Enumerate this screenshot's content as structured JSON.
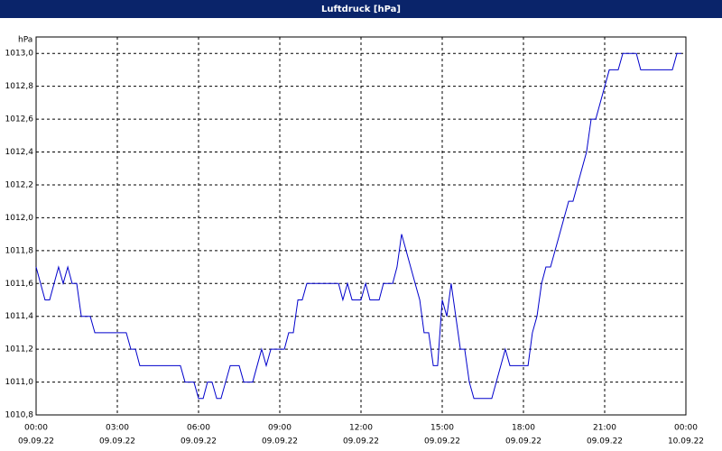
{
  "chart_data": {
    "type": "line",
    "title": "Luftdruck [hPa]",
    "y_label": "hPa",
    "x": [
      0,
      0.33,
      0.5,
      0.83,
      1,
      1.17,
      1.33,
      1.5,
      1.67,
      2,
      2.17,
      3.33,
      3.5,
      3.67,
      3.83,
      5.33,
      5.5,
      5.83,
      6,
      6.17,
      6.33,
      6.5,
      6.67,
      6.83,
      7.17,
      7.5,
      7.67,
      8,
      8.33,
      8.5,
      8.67,
      9.17,
      9.33,
      9.5,
      9.67,
      9.83,
      10,
      11.17,
      11.33,
      11.5,
      11.67,
      12,
      12.17,
      12.33,
      12.67,
      12.83,
      13.17,
      13.33,
      13.5,
      14,
      14.17,
      14.33,
      14.5,
      14.67,
      14.83,
      15,
      15.17,
      15.33,
      15.67,
      15.83,
      16,
      16.17,
      16.83,
      17.33,
      17.5,
      18.17,
      18.33,
      18.5,
      18.67,
      18.83,
      19,
      19.67,
      19.83,
      20.33,
      20.5,
      20.67,
      21.17,
      21.5,
      21.67,
      22.17,
      22.33,
      23.5,
      23.67,
      23.83
    ],
    "series": [
      {
        "name": "Luftdruck",
        "color": "#0000cc",
        "values": [
          1011.7,
          1011.5,
          1011.5,
          1011.7,
          1011.6,
          1011.7,
          1011.6,
          1011.6,
          1011.4,
          1011.4,
          1011.3,
          1011.3,
          1011.2,
          1011.2,
          1011.1,
          1011.1,
          1011.0,
          1011.0,
          1010.9,
          1010.9,
          1011.0,
          1011.0,
          1010.9,
          1010.9,
          1011.1,
          1011.1,
          1011.0,
          1011.0,
          1011.2,
          1011.1,
          1011.2,
          1011.2,
          1011.3,
          1011.3,
          1011.5,
          1011.5,
          1011.6,
          1011.6,
          1011.5,
          1011.6,
          1011.5,
          1011.5,
          1011.6,
          1011.5,
          1011.5,
          1011.6,
          1011.6,
          1011.7,
          1011.9,
          1011.6,
          1011.5,
          1011.3,
          1011.3,
          1011.1,
          1011.1,
          1011.5,
          1011.4,
          1011.6,
          1011.2,
          1011.2,
          1011.0,
          1010.9,
          1010.9,
          1011.2,
          1011.1,
          1011.1,
          1011.3,
          1011.4,
          1011.6,
          1011.7,
          1011.7,
          1012.1,
          1012.1,
          1012.4,
          1012.6,
          1012.6,
          1012.9,
          1012.9,
          1013.0,
          1013.0,
          1012.9,
          1012.9,
          1013.0,
          1013.0
        ]
      }
    ],
    "xlim": [
      0,
      24
    ],
    "ylim": [
      1010.8,
      1013.1
    ],
    "xticks": [
      {
        "value": 0,
        "label": "00:00"
      },
      {
        "value": 3,
        "label": "03:00"
      },
      {
        "value": 6,
        "label": "06:00"
      },
      {
        "value": 9,
        "label": "09:00"
      },
      {
        "value": 12,
        "label": "12:00"
      },
      {
        "value": 15,
        "label": "15:00"
      },
      {
        "value": 18,
        "label": "18:00"
      },
      {
        "value": 21,
        "label": "21:00"
      },
      {
        "value": 24,
        "label": "00:00"
      }
    ],
    "xtick_dates": [
      "09.09.22",
      "09.09.22",
      "09.09.22",
      "09.09.22",
      "09.09.22",
      "09.09.22",
      "09.09.22",
      "09.09.22",
      "10.09.22"
    ],
    "yticks": [
      {
        "value": 1010.8,
        "label": "1010,8"
      },
      {
        "value": 1011.0,
        "label": "1011,0"
      },
      {
        "value": 1011.2,
        "label": "1011,2"
      },
      {
        "value": 1011.4,
        "label": "1011,4"
      },
      {
        "value": 1011.6,
        "label": "1011,6"
      },
      {
        "value": 1011.8,
        "label": "1011,8"
      },
      {
        "value": 1012.0,
        "label": "1012,0"
      },
      {
        "value": 1012.2,
        "label": "1012,2"
      },
      {
        "value": 1012.4,
        "label": "1012,4"
      },
      {
        "value": 1012.6,
        "label": "1012,6"
      },
      {
        "value": 1012.8,
        "label": "1012,8"
      },
      {
        "value": 1013.0,
        "label": "1013,0"
      }
    ],
    "grid": true
  }
}
